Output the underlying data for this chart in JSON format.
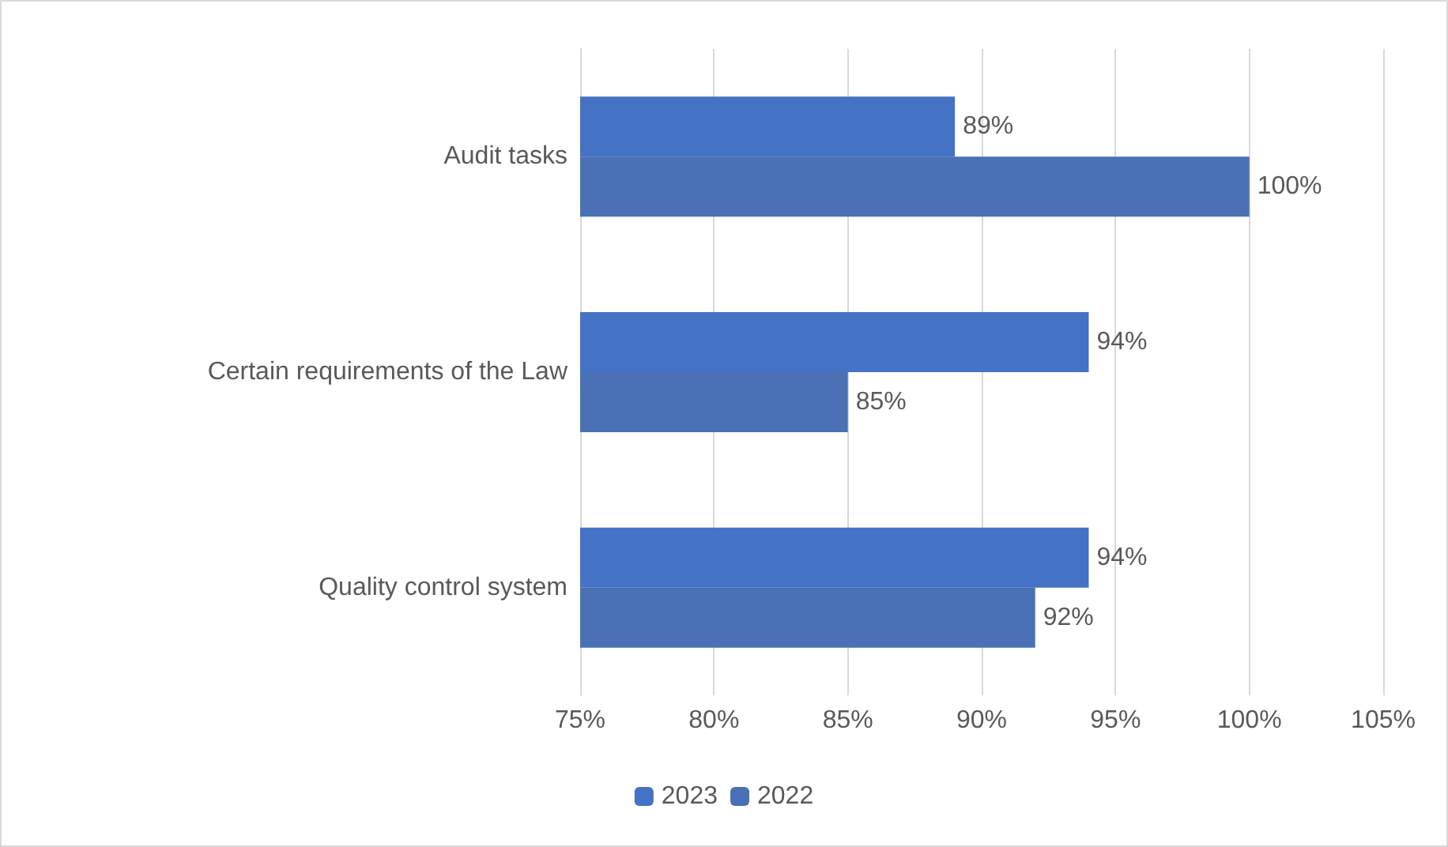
{
  "chart_data": {
    "type": "bar",
    "orientation": "horizontal",
    "categories": [
      "Audit tasks",
      "Certain requirements of the Law",
      "Quality control system"
    ],
    "series": [
      {
        "name": "2023",
        "color": "#4472c4",
        "values": [
          89,
          94,
          94
        ],
        "value_labels": [
          "89%",
          "94%",
          "94%"
        ]
      },
      {
        "name": "2022",
        "color": "#4a70b5",
        "values": [
          100,
          85,
          92
        ],
        "value_labels": [
          "100%",
          "85%",
          "92%"
        ]
      }
    ],
    "xlim": [
      75,
      105
    ],
    "xticks": [
      {
        "value": 75,
        "label": "75%"
      },
      {
        "value": 80,
        "label": "80%"
      },
      {
        "value": 85,
        "label": "85%"
      },
      {
        "value": 90,
        "label": "90%"
      },
      {
        "value": 95,
        "label": "95%"
      },
      {
        "value": 100,
        "label": "100%"
      },
      {
        "value": 105,
        "label": "105%"
      }
    ],
    "grid": "x",
    "legend": "bottom"
  }
}
